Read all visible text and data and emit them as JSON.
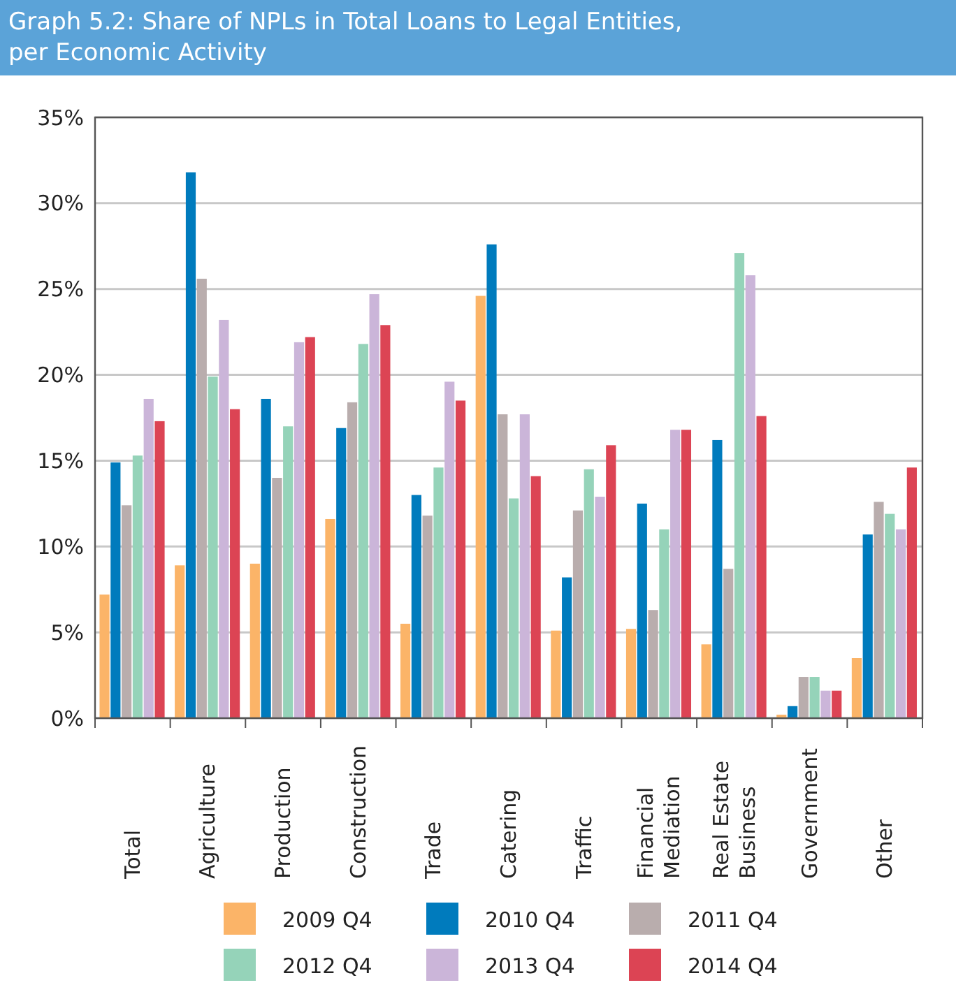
{
  "chart_data": {
    "type": "bar",
    "title": "Graph 5.2: Share of NPLs in Total Loans to Legal Entities, per Economic Activity",
    "categories": [
      "Total",
      "Agriculture",
      "Production",
      "Construction",
      "Trade",
      "Catering",
      "Traffic",
      "Financial Mediation",
      "Real Estate Business",
      "Government",
      "Other"
    ],
    "series": [
      {
        "name": "2009 Q4",
        "color": "#fbb468",
        "values": [
          7.2,
          8.9,
          9.0,
          11.6,
          5.5,
          24.6,
          5.1,
          5.2,
          4.3,
          0.2,
          3.5
        ]
      },
      {
        "name": "2010 Q4",
        "color": "#007bbd",
        "values": [
          14.9,
          31.8,
          18.6,
          16.9,
          13.0,
          27.6,
          8.2,
          12.5,
          16.2,
          0.7,
          10.7
        ]
      },
      {
        "name": "2011 Q4",
        "color": "#b9adad",
        "values": [
          12.4,
          25.6,
          14.0,
          18.4,
          11.8,
          17.7,
          12.1,
          6.3,
          8.7,
          2.4,
          12.6
        ]
      },
      {
        "name": "2012 Q4",
        "color": "#95d3b9",
        "values": [
          15.3,
          19.9,
          17.0,
          21.8,
          14.6,
          12.8,
          14.5,
          11.0,
          27.1,
          2.4,
          11.9
        ]
      },
      {
        "name": "2013 Q4",
        "color": "#cbb5d9",
        "values": [
          18.6,
          23.2,
          21.9,
          24.7,
          19.6,
          17.7,
          12.9,
          16.8,
          25.8,
          1.6,
          11.0
        ]
      },
      {
        "name": "2014 Q4",
        "color": "#dc4454",
        "values": [
          17.3,
          18.0,
          22.2,
          22.9,
          18.5,
          14.1,
          15.9,
          16.8,
          17.6,
          1.6,
          14.6
        ]
      }
    ],
    "ylim": [
      0,
      35
    ],
    "yticks": [
      {
        "value": 0,
        "label": "0%"
      },
      {
        "value": 5,
        "label": "5%"
      },
      {
        "value": 10,
        "label": "10%"
      },
      {
        "value": 15,
        "label": "15%"
      },
      {
        "value": 20,
        "label": "20%"
      },
      {
        "value": 25,
        "label": "25%"
      },
      {
        "value": 30,
        "label": "30%"
      },
      {
        "value": 35,
        "label": "35%"
      }
    ],
    "grid": "y",
    "legend": "bottom"
  }
}
